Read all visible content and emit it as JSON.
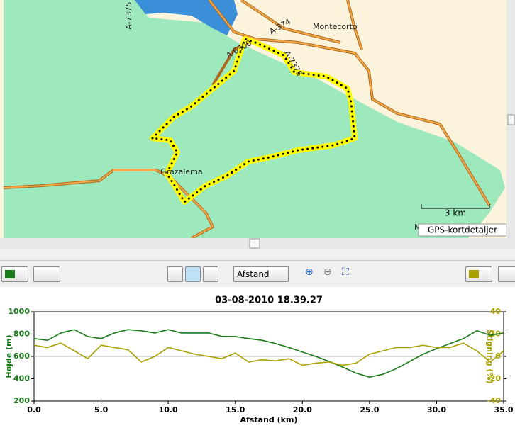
{
  "map": {
    "road_labels": [
      "A-7375",
      "A-374",
      "A-6300",
      "A-7375"
    ],
    "places": [
      "Montecorto",
      "Grazalema",
      "M"
    ],
    "scale": "3 km",
    "caption": "GPS-kortdetaljer"
  },
  "toolbar": {
    "axis_select": "Afstand"
  },
  "chart_data": {
    "type": "line",
    "title": "03-08-2010 18.39.27",
    "x_label": "Afstand (km)",
    "y_label": "Højde (m)",
    "y2_label": "Stigning (%)",
    "x": [
      0,
      1,
      2,
      3,
      4,
      5,
      6,
      7,
      8,
      9,
      10,
      11,
      12,
      13,
      14,
      15,
      16,
      17,
      18,
      19,
      20,
      21,
      22,
      23,
      24,
      25,
      26,
      27,
      28,
      29,
      30,
      31,
      32,
      33,
      34,
      35
    ],
    "series": [
      {
        "name": "Højde",
        "color": "#1a7a1a",
        "values": [
          760,
          745,
          810,
          840,
          778,
          760,
          810,
          840,
          830,
          810,
          840,
          810,
          810,
          810,
          780,
          778,
          760,
          745,
          715,
          680,
          640,
          600,
          555,
          505,
          450,
          415,
          440,
          490,
          555,
          620,
          670,
          715,
          760,
          830,
          790,
          810
        ]
      },
      {
        "name": "Stigning",
        "color": "#a8a000",
        "axis": "y2",
        "values": [
          10,
          8,
          12,
          5,
          -2,
          10,
          8,
          6,
          -5,
          0,
          8,
          5,
          2,
          0,
          -2,
          3,
          -5,
          -3,
          -4,
          -2,
          -8,
          -6,
          -5,
          -8,
          -6,
          2,
          5,
          8,
          8,
          10,
          8,
          8,
          12,
          5,
          -5,
          5
        ]
      }
    ],
    "xlim": [
      0,
      35
    ],
    "xticks": [
      {
        "value": 0,
        "label": "0.0"
      },
      {
        "value": 5,
        "label": "5.0"
      },
      {
        "value": 10,
        "label": "10.0"
      },
      {
        "value": 15,
        "label": "15.0"
      },
      {
        "value": 20,
        "label": "20.0"
      },
      {
        "value": 25,
        "label": "25.0"
      },
      {
        "value": 30,
        "label": "30.0"
      },
      {
        "value": 35,
        "label": "35.0"
      }
    ],
    "ylim": [
      200,
      1000
    ],
    "yticks": [
      200,
      400,
      600,
      800,
      1000
    ],
    "y2lim": [
      -40,
      40
    ],
    "y2ticks": [
      -40,
      -20,
      0,
      20,
      40
    ]
  }
}
